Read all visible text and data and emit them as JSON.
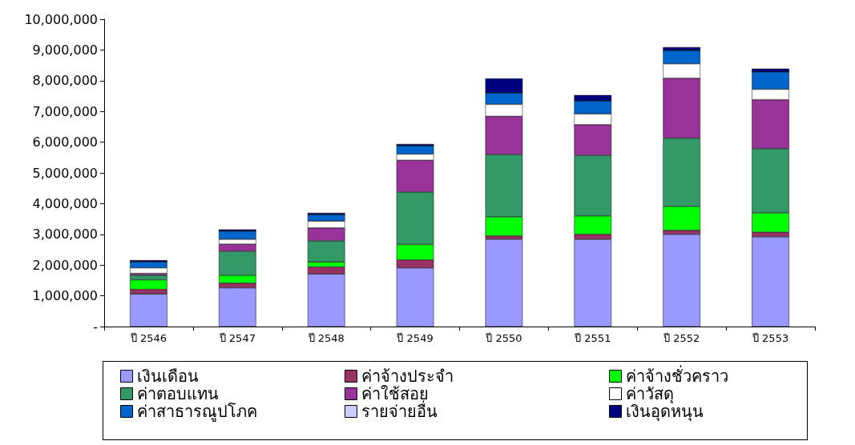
{
  "chart_data": {
    "type": "bar",
    "stacked": true,
    "categories": [
      "ปี 2546",
      "ปี 2547",
      "ปี 2548",
      "ปี 2549",
      "ปี 2550",
      "ปี 2551",
      "ปี 2552",
      "ปี 2553"
    ],
    "series": [
      {
        "name": "เงินเดือน",
        "color": "#9999ff",
        "values": [
          1060000,
          1260000,
          1710000,
          1910000,
          2840000,
          2840000,
          3000000,
          2920000
        ]
      },
      {
        "name": "ค่าจ้างประจำ",
        "color": "#993366",
        "values": [
          150000,
          150000,
          230000,
          260000,
          110000,
          160000,
          130000,
          150000
        ]
      },
      {
        "name": "ค่าจ้างชั่วคราว",
        "color": "#00ff00",
        "values": [
          310000,
          260000,
          160000,
          500000,
          620000,
          600000,
          780000,
          630000
        ]
      },
      {
        "name": "ค่าตอบแทน",
        "color": "#339966",
        "values": [
          150000,
          780000,
          690000,
          1710000,
          2030000,
          1970000,
          2220000,
          2090000
        ]
      },
      {
        "name": "ค่าใช้สอย",
        "color": "#993399",
        "values": [
          60000,
          230000,
          420000,
          1030000,
          1240000,
          1000000,
          1950000,
          1590000
        ]
      },
      {
        "name": "ค่าวัสดุ",
        "color": "#ffffff",
        "values": [
          180000,
          160000,
          220000,
          200000,
          390000,
          350000,
          470000,
          340000
        ]
      },
      {
        "name": "ค่าสาธารณูปโภค",
        "color": "#0066cc",
        "values": [
          200000,
          270000,
          220000,
          280000,
          380000,
          430000,
          440000,
          570000
        ]
      },
      {
        "name": "รายจ่ายอื่น",
        "color": "#ccccff",
        "values": [
          0,
          0,
          0,
          0,
          0,
          0,
          0,
          0
        ]
      },
      {
        "name": "เงินอุดหนุน",
        "color": "#000080",
        "values": [
          50000,
          50000,
          50000,
          50000,
          460000,
          180000,
          100000,
          100000
        ]
      }
    ],
    "ylim": [
      0,
      10000000
    ],
    "yticks": [
      {
        "value": 0,
        "label": "-"
      },
      {
        "value": 1000000,
        "label": "1,000,000"
      },
      {
        "value": 2000000,
        "label": "2,000,000"
      },
      {
        "value": 3000000,
        "label": "3,000,000"
      },
      {
        "value": 4000000,
        "label": "4,000,000"
      },
      {
        "value": 5000000,
        "label": "5,000,000"
      },
      {
        "value": 6000000,
        "label": "6,000,000"
      },
      {
        "value": 7000000,
        "label": "7,000,000"
      },
      {
        "value": 8000000,
        "label": "8,000,000"
      },
      {
        "value": 9000000,
        "label": "9,000,000"
      },
      {
        "value": 10000000,
        "label": "10,000,000"
      }
    ],
    "grid": false,
    "legend": "bottom"
  }
}
